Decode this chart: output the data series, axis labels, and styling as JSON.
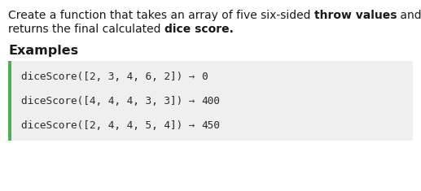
{
  "bg_color": "#ffffff",
  "desc_line1_normal1": "Create a function that takes an array of five six-sided ",
  "desc_line1_bold": "throw values",
  "desc_line1_normal2": " and",
  "desc_line2_normal1": "returns the final calculated ",
  "desc_line2_bold": "dice score.",
  "examples_label": "Examples",
  "code_bg": "#efefef",
  "bar_color": "#4caf50",
  "code_lines": [
    {
      "code": "diceScore([2, 3, 4, 6, 2])",
      "arrow": " → ",
      "result": "0"
    },
    {
      "code": "diceScore([4, 4, 4, 3, 3])",
      "arrow": " → ",
      "result": "400"
    },
    {
      "code": "diceScore([2, 4, 4, 5, 4])",
      "arrow": " → ",
      "result": "450"
    }
  ],
  "font_size_desc": 10.0,
  "font_size_examples": 11.5,
  "font_size_code": 9.2,
  "text_color": "#1a1a1a",
  "code_color": "#2a2a2a",
  "arrow_color": "#444444"
}
